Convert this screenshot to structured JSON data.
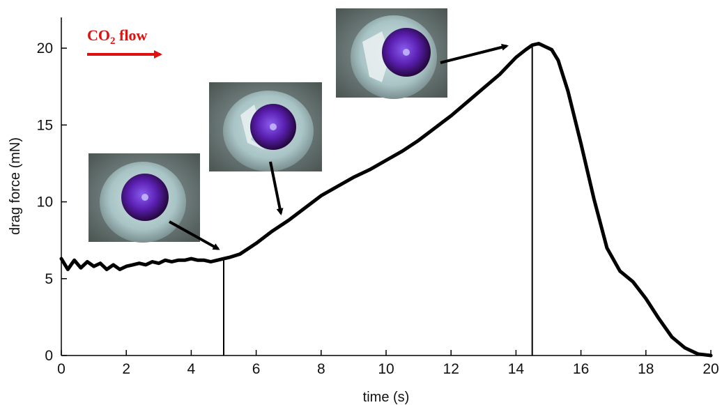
{
  "chart_data": {
    "type": "line",
    "xlabel": "time (s)",
    "ylabel": "drag force (mN)",
    "xlim": [
      0,
      20
    ],
    "ylim": [
      0,
      22
    ],
    "xticks": [
      0,
      2,
      4,
      6,
      8,
      10,
      12,
      14,
      16,
      18,
      20
    ],
    "yticks": [
      0,
      5,
      10,
      15,
      20
    ],
    "grid": false,
    "series": [
      {
        "x": [
          0,
          0.2,
          0.4,
          0.6,
          0.8,
          1.0,
          1.2,
          1.4,
          1.6,
          1.8,
          2.0,
          2.2,
          2.4,
          2.6,
          2.8,
          3.0,
          3.2,
          3.4,
          3.6,
          3.8,
          4.0,
          4.2,
          4.4,
          4.6,
          4.8,
          5.0,
          5.2,
          5.5,
          6.0,
          6.5,
          7.0,
          7.5,
          8.0,
          8.5,
          9.0,
          9.5,
          10.0,
          10.5,
          11.0,
          11.5,
          12.0,
          12.5,
          13.0,
          13.5,
          14.0,
          14.3,
          14.5,
          14.7,
          14.9,
          15.1,
          15.3,
          15.6,
          16.0,
          16.4,
          16.8,
          17.2,
          17.6,
          18.0,
          18.4,
          18.8,
          19.2,
          19.6,
          20.0
        ],
        "y": [
          6.3,
          5.6,
          6.2,
          5.7,
          6.1,
          5.8,
          6.0,
          5.6,
          5.9,
          5.6,
          5.8,
          5.9,
          6.0,
          5.9,
          6.1,
          6.0,
          6.2,
          6.1,
          6.2,
          6.2,
          6.3,
          6.2,
          6.2,
          6.1,
          6.2,
          6.3,
          6.4,
          6.6,
          7.3,
          8.1,
          8.8,
          9.6,
          10.4,
          11.0,
          11.6,
          12.1,
          12.7,
          13.3,
          14.0,
          14.8,
          15.6,
          16.5,
          17.4,
          18.3,
          19.4,
          19.9,
          20.2,
          20.3,
          20.1,
          19.9,
          19.2,
          17.2,
          13.8,
          10.2,
          7.0,
          5.5,
          4.8,
          3.7,
          2.4,
          1.2,
          0.5,
          0.1,
          0.0
        ]
      }
    ],
    "markers": [
      5.0,
      14.5
    ],
    "annotation": {
      "text_main": "CO",
      "text_sub": "2",
      "text_tail": " flow",
      "color": "#e01010"
    }
  }
}
